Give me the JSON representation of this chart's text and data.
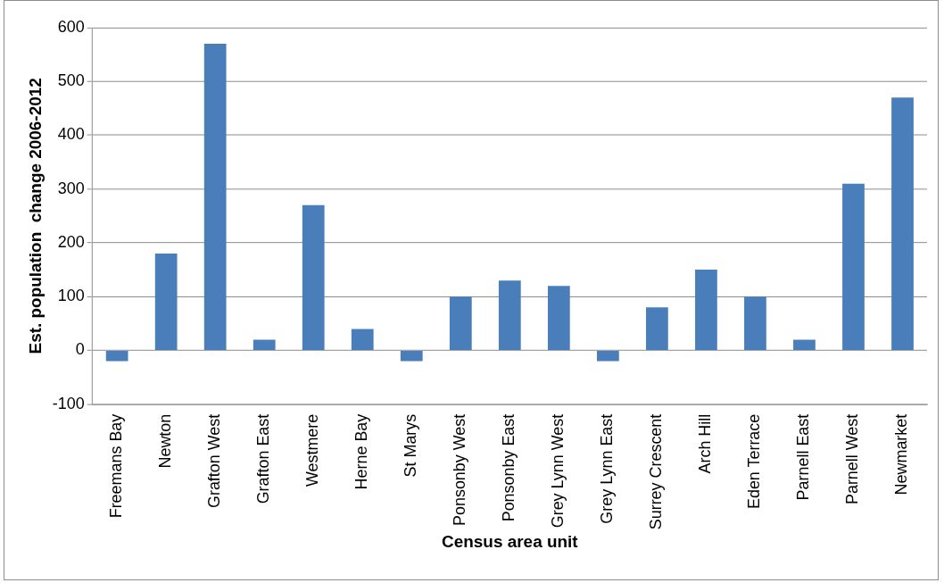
{
  "chart_data": {
    "type": "bar",
    "xlabel": "Census area unit",
    "ylabel": "Est. population  change 2006-2012",
    "categories": [
      "Freemans Bay",
      "Newton",
      "Grafton West",
      "Grafton East",
      "Westmere",
      "Herne Bay",
      "St Marys",
      "Ponsonby West",
      "Ponsonby East",
      "Grey Lynn West",
      "Grey Lynn East",
      "Surrey Crescent",
      "Arch Hill",
      "Eden Terrace",
      "Parnell East",
      "Parnell West",
      "Newmarket"
    ],
    "values": [
      -20,
      180,
      570,
      20,
      270,
      40,
      -20,
      100,
      130,
      120,
      -20,
      80,
      150,
      100,
      20,
      310,
      470
    ],
    "color": "#4a7ebb",
    "ylim": [
      -100,
      600
    ],
    "yticks": [
      -100,
      0,
      100,
      200,
      300,
      400,
      500,
      600
    ],
    "grid": "y",
    "legend": false
  }
}
